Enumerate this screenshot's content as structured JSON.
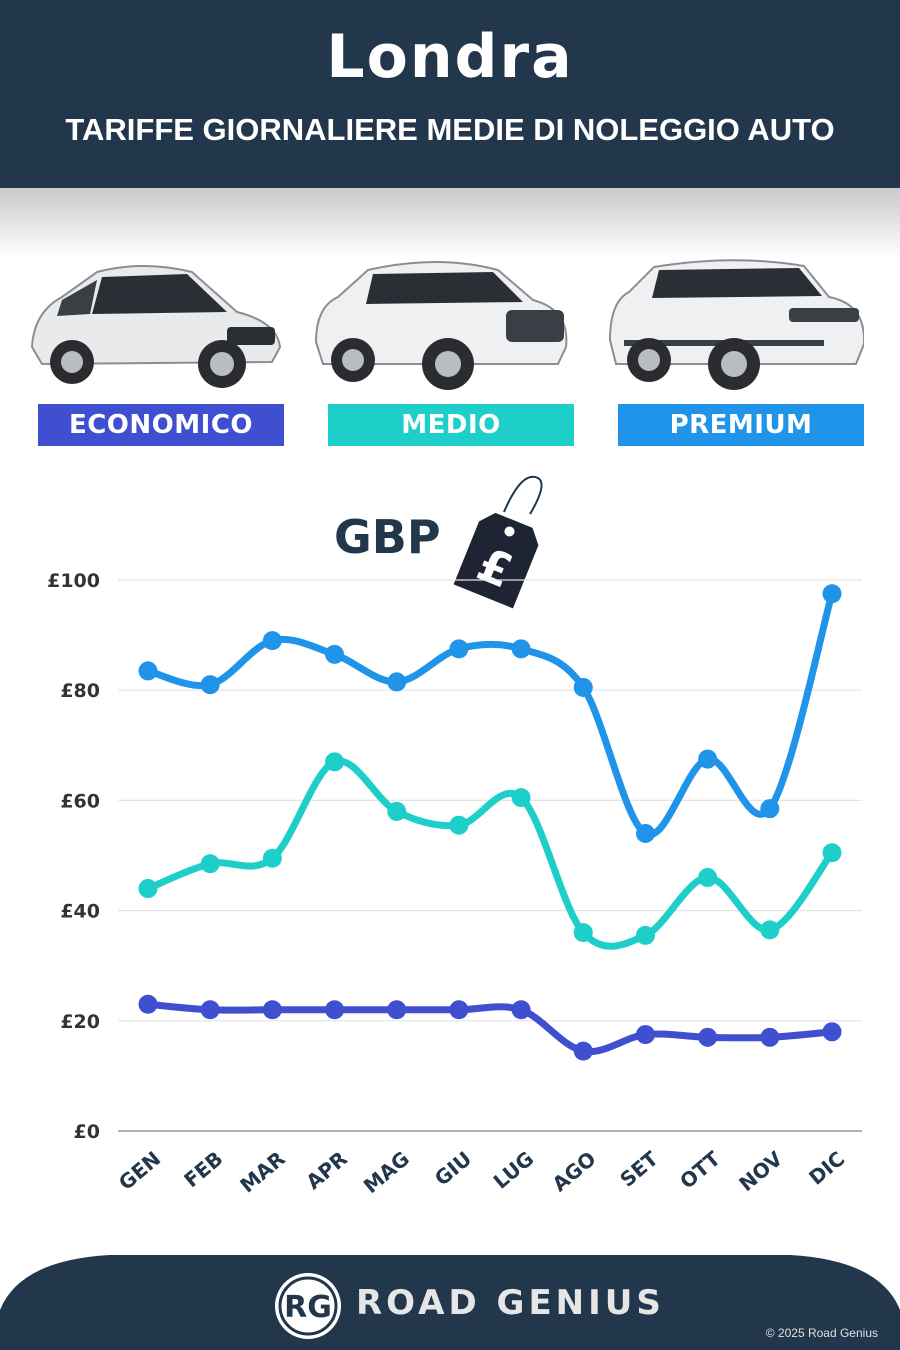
{
  "header": {
    "title": "Londra",
    "subtitle": "TARIFFE GIORNALIERE MEDIE DI NOLEGGIO AUTO"
  },
  "categories": [
    {
      "label": "ECONOMICO",
      "color": "#3f4fd0"
    },
    {
      "label": "MEDIO",
      "color": "#1ecfc9"
    },
    {
      "label": "PREMIUM",
      "color": "#1f94e8"
    }
  ],
  "currency_label": "GBP",
  "currency_icon": "pound-price-tag-icon",
  "chart_data": {
    "type": "line",
    "categories": [
      "GEN",
      "FEB",
      "MAR",
      "APR",
      "MAG",
      "GIU",
      "LUG",
      "AGO",
      "SET",
      "OTT",
      "NOV",
      "DIC"
    ],
    "series": [
      {
        "name": "PREMIUM",
        "color": "#1f94e8",
        "values": [
          83.5,
          81,
          89,
          86.5,
          81.5,
          87.5,
          87.5,
          80.5,
          54,
          67.5,
          58.5,
          97.5
        ]
      },
      {
        "name": "MEDIO",
        "color": "#1ecfc9",
        "values": [
          44,
          48.5,
          49.5,
          67,
          58,
          55.5,
          60.5,
          36,
          35.5,
          46,
          36.5,
          50.5
        ]
      },
      {
        "name": "ECONOMICO",
        "color": "#3f4fd0",
        "values": [
          23,
          22,
          22,
          22,
          22,
          22,
          22,
          14.5,
          17.5,
          17,
          17,
          18
        ]
      }
    ],
    "yticks": [
      "£0",
      "£20",
      "£40",
      "£60",
      "£80",
      "£100"
    ],
    "ylim": [
      0,
      100
    ],
    "grid": true
  },
  "footer": {
    "brand": "ROAD GENIUS",
    "logo": "RG",
    "copyright": "© 2025 Road Genius",
    "color": "#22374b"
  }
}
